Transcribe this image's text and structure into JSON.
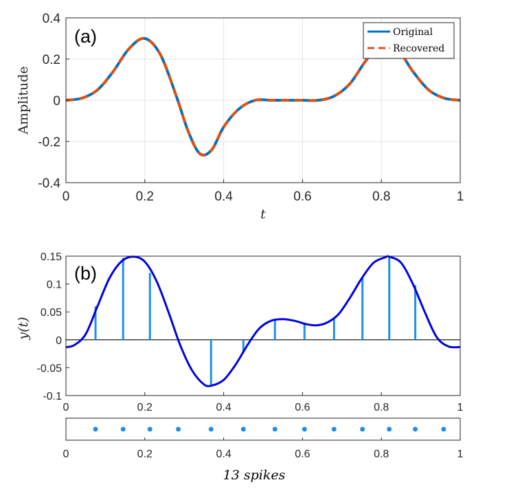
{
  "chart_data": [
    {
      "type": "line",
      "panel_label": "(a)",
      "xlabel": "t",
      "ylabel": "Amplitude",
      "xlim": [
        0,
        1
      ],
      "ylim": [
        -0.4,
        0.4
      ],
      "x_ticks": [
        "0",
        "0.2",
        "0.4",
        "0.6",
        "0.8",
        "1"
      ],
      "y_ticks": [
        "0.4",
        "0.2",
        "0",
        "-0.2",
        "-0.4"
      ],
      "grid": true,
      "legend_position": "top-right",
      "x": [
        0,
        0.04,
        0.08,
        0.12,
        0.16,
        0.2,
        0.24,
        0.28,
        0.31,
        0.34,
        0.37,
        0.4,
        0.44,
        0.48,
        0.52,
        0.56,
        0.6,
        0.64,
        0.68,
        0.72,
        0.76,
        0.8,
        0.84,
        0.88,
        0.92,
        0.96,
        1.0
      ],
      "series": [
        {
          "name": "Original",
          "color": "#0072BD",
          "style": "solid",
          "values": [
            0.0,
            0.01,
            0.05,
            0.14,
            0.25,
            0.3,
            0.22,
            0.02,
            -0.15,
            -0.26,
            -0.24,
            -0.13,
            -0.04,
            0.0,
            0.0,
            0.0,
            0.0,
            0.0,
            0.02,
            0.08,
            0.19,
            0.28,
            0.25,
            0.14,
            0.05,
            0.01,
            0.0
          ]
        },
        {
          "name": "Recovered",
          "color": "#D95319",
          "style": "dashed",
          "values": [
            0.0,
            0.01,
            0.05,
            0.14,
            0.25,
            0.3,
            0.22,
            0.02,
            -0.15,
            -0.26,
            -0.24,
            -0.13,
            -0.04,
            0.0,
            0.0,
            0.0,
            0.0,
            0.0,
            0.02,
            0.08,
            0.19,
            0.28,
            0.25,
            0.14,
            0.05,
            0.01,
            0.0
          ]
        }
      ]
    },
    {
      "type": "line",
      "panel_label": "(b)",
      "ylabel": "y(t)",
      "xlim": [
        0,
        1
      ],
      "ylim": [
        -0.1,
        0.15
      ],
      "x_ticks": [
        "0",
        "0.2",
        "0.4",
        "0.6",
        "0.8",
        "1"
      ],
      "y_ticks": [
        "0.15",
        "0.1",
        "0.05",
        "0",
        "-0.05",
        "-0.1"
      ],
      "grid": false,
      "curve_color": "#0000E0",
      "stem_color": "#1E8FE8",
      "x": [
        0,
        0.02,
        0.05,
        0.08,
        0.11,
        0.14,
        0.17,
        0.2,
        0.23,
        0.26,
        0.29,
        0.32,
        0.35,
        0.37,
        0.4,
        0.43,
        0.46,
        0.49,
        0.52,
        0.55,
        0.58,
        0.61,
        0.635,
        0.66,
        0.69,
        0.72,
        0.75,
        0.78,
        0.81,
        0.82,
        0.85,
        0.88,
        0.91,
        0.94,
        0.97,
        1.0
      ],
      "values": [
        -0.013,
        -0.01,
        0.01,
        0.06,
        0.11,
        0.14,
        0.149,
        0.14,
        0.105,
        0.05,
        -0.01,
        -0.055,
        -0.08,
        -0.082,
        -0.072,
        -0.045,
        -0.01,
        0.02,
        0.034,
        0.037,
        0.034,
        0.028,
        0.026,
        0.03,
        0.045,
        0.075,
        0.11,
        0.138,
        0.148,
        0.149,
        0.138,
        0.1,
        0.05,
        0.005,
        -0.012,
        -0.013
      ],
      "spikes_x": [
        0.075,
        0.145,
        0.213,
        0.285,
        0.368,
        0.45,
        0.53,
        0.605,
        0.68,
        0.752,
        0.82,
        0.886,
        0.958
      ],
      "stems": [
        0.06,
        0.147,
        0.12,
        0.0,
        -0.082,
        -0.022,
        0.034,
        0.028,
        0.037,
        0.11,
        0.148,
        0.098,
        0.0
      ]
    },
    {
      "type": "scatter",
      "xlim": [
        0,
        1
      ],
      "x_ticks": [
        "0",
        "0.2",
        "0.4",
        "0.6",
        "0.8",
        "1"
      ],
      "caption": "13 spikes",
      "marker_color": "#1E8FE8"
    }
  ]
}
